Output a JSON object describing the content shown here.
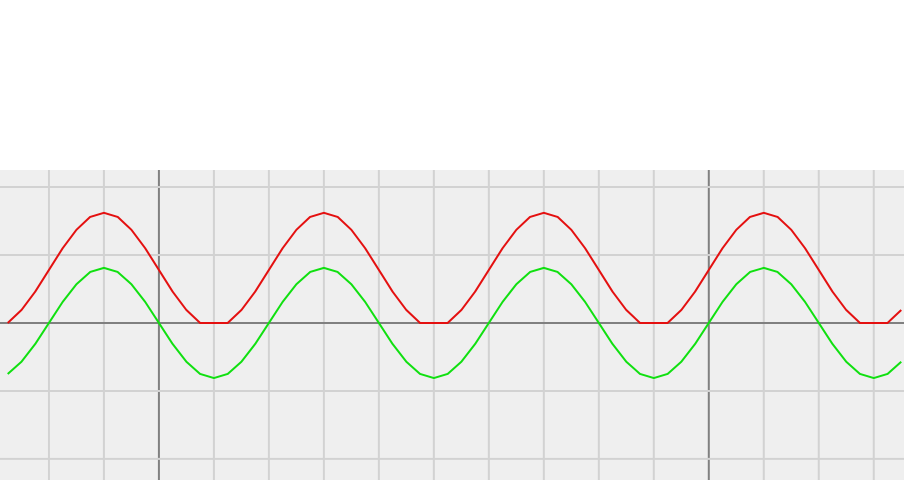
{
  "chart_data": {
    "type": "line",
    "x": [
      -27.5,
      -25,
      -22.5,
      -20,
      -17.5,
      -15,
      -12.5,
      -10,
      -7.5,
      -5,
      -2.5,
      0,
      2.5,
      5,
      7.5,
      10,
      12.5,
      15,
      17.5,
      20,
      22.5,
      25,
      27.5,
      30,
      32.5,
      35,
      37.5,
      40,
      42.5,
      45,
      47.5,
      50,
      52.5,
      55,
      57.5,
      60,
      62.5,
      65,
      67.5,
      70,
      72.5,
      75,
      77.5,
      80,
      82.5,
      85,
      87.5,
      90,
      92.5,
      95,
      97.5,
      100,
      102.5,
      105,
      107.5,
      110,
      112.5,
      115,
      117.5,
      120,
      122.5,
      125,
      127.5,
      130,
      132.5,
      135
    ],
    "series": [
      {
        "color": "#e41010",
        "values": [
          0,
          0.19,
          0.46,
          0.78,
          1.1,
          1.37,
          1.56,
          1.62,
          1.56,
          1.37,
          1.1,
          0.78,
          0.46,
          0.19,
          0,
          0,
          0,
          0.19,
          0.46,
          0.78,
          1.1,
          1.37,
          1.56,
          1.62,
          1.56,
          1.37,
          1.1,
          0.78,
          0.46,
          0.19,
          0,
          0,
          0,
          0.19,
          0.46,
          0.78,
          1.1,
          1.37,
          1.56,
          1.62,
          1.56,
          1.37,
          1.1,
          0.78,
          0.46,
          0.19,
          0,
          0,
          0,
          0.19,
          0.46,
          0.78,
          1.1,
          1.37,
          1.56,
          1.62,
          1.56,
          1.37,
          1.1,
          0.78,
          0.46,
          0.19,
          0,
          0,
          0,
          0.19
        ]
      },
      {
        "color": "#10e010",
        "values": [
          -0.75,
          -0.57,
          -0.31,
          0,
          0.31,
          0.57,
          0.75,
          0.81,
          0.75,
          0.57,
          0.31,
          0,
          -0.31,
          -0.57,
          -0.75,
          -0.81,
          -0.75,
          -0.57,
          -0.31,
          0,
          0.31,
          0.57,
          0.75,
          0.81,
          0.75,
          0.57,
          0.31,
          0,
          -0.31,
          -0.57,
          -0.75,
          -0.81,
          -0.75,
          -0.57,
          -0.31,
          0,
          0.31,
          0.57,
          0.75,
          0.81,
          0.75,
          0.57,
          0.31,
          0,
          -0.31,
          -0.57,
          -0.75,
          -0.81,
          -0.75,
          -0.57,
          -0.31,
          0,
          0.31,
          0.57,
          0.75,
          0.81,
          0.75,
          0.57,
          0.31,
          0,
          -0.31,
          -0.57,
          -0.75,
          -0.81,
          -0.75,
          -0.57
        ]
      }
    ],
    "xlim": [
      -28.9,
      135.5
    ],
    "ylim": [
      -2.31,
      2.25
    ],
    "xticks": [
      -20,
      -10,
      0,
      10,
      20,
      30,
      40,
      50,
      60,
      70,
      80,
      90,
      100,
      110,
      120,
      130
    ],
    "yticks": [
      -2,
      -1,
      0,
      1,
      2
    ],
    "xmajor": [
      0,
      100
    ],
    "ymajor": [
      0
    ],
    "grid": true
  }
}
